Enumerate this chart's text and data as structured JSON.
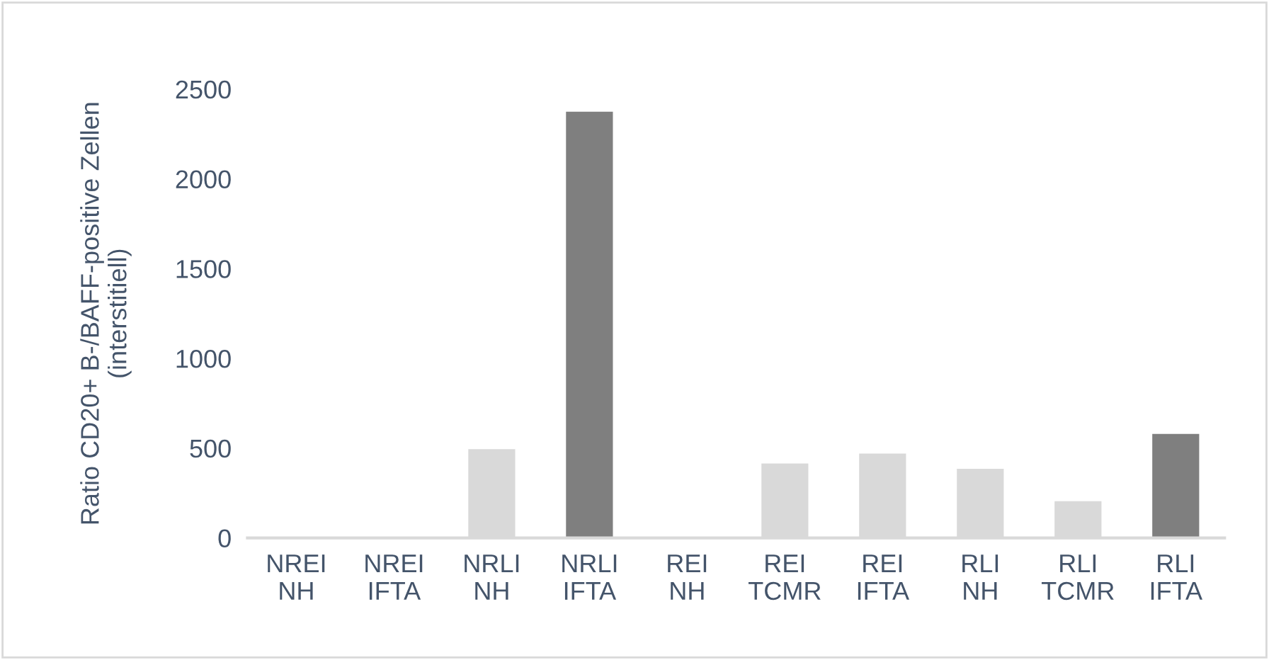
{
  "chart_data": {
    "type": "bar",
    "ylabel": "Ratio CD20+ B-/BAFF-positive Zellen\n(interstitiell)",
    "categories": [
      "NREI\nNH",
      "NREI\nIFTA",
      "NRLI\nNH",
      "NRLI\nIFTA",
      "REI\nNH",
      "REI\nTCMR",
      "REI\nIFTA",
      "RLI\nNH",
      "RLI\nTCMR",
      "RLI\nIFTA"
    ],
    "values": [
      5,
      null,
      500,
      2380,
      null,
      420,
      475,
      390,
      210,
      585
    ],
    "colors": [
      "#d9d9d9",
      "#d9d9d9",
      "#d9d9d9",
      "#7f7f7f",
      "#d9d9d9",
      "#d9d9d9",
      "#d9d9d9",
      "#d9d9d9",
      "#d9d9d9",
      "#7f7f7f"
    ],
    "ylim": [
      0,
      2500
    ],
    "yticks": [
      0,
      500,
      1000,
      1500,
      2000,
      2500
    ],
    "grid": false
  }
}
